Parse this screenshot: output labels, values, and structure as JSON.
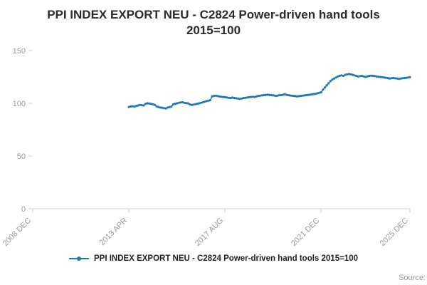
{
  "title": {
    "line1": "PPI INDEX EXPORT NEU - C2824 Power-driven hand tools",
    "line2": "2015=100"
  },
  "legend": {
    "label": "PPI INDEX EXPORT NEU - C2824 Power-driven hand tools 2015=100"
  },
  "source": "Source:",
  "colors": {
    "line": "#1f77b4",
    "axis": "#cccccc",
    "tick_label": "#999999",
    "title": "#2b2b2b"
  },
  "chart_data": {
    "type": "line",
    "title": "PPI INDEX EXPORT NEU - C2824 Power-driven hand tools 2015=100",
    "xlabel": "",
    "ylabel": "",
    "ylim": [
      0,
      150
    ],
    "yticks": [
      0,
      50,
      100,
      150
    ],
    "grid": false,
    "legend_position": "bottom",
    "xticks": [
      "2008 DEC",
      "2013 APR",
      "2017 AUG",
      "2021 DEC",
      "2025 DEC"
    ],
    "xtick_month_index": [
      0,
      52,
      104,
      156,
      204
    ],
    "x_range_months": 204,
    "series": [
      {
        "name": "PPI INDEX EXPORT NEU - C2824 Power-driven hand tools 2015=100",
        "start_label": "2013 APR",
        "start_month_index": 52,
        "frequency": "monthly",
        "values": [
          96.5,
          97.0,
          97.2,
          96.8,
          97.5,
          98.0,
          98.5,
          98.2,
          98.0,
          99.5,
          100.0,
          99.8,
          99.5,
          99.0,
          98.5,
          97.0,
          96.5,
          96.0,
          95.8,
          95.5,
          95.2,
          96.0,
          96.5,
          97.0,
          99.0,
          99.5,
          100.0,
          100.5,
          100.8,
          101.0,
          100.5,
          100.2,
          100.0,
          99.0,
          98.5,
          98.8,
          99.2,
          99.5,
          100.0,
          100.5,
          101.0,
          101.5,
          102.0,
          102.5,
          103.0,
          106.5,
          107.0,
          107.2,
          106.8,
          106.5,
          106.2,
          106.0,
          105.8,
          105.5,
          105.2,
          105.0,
          105.5,
          105.0,
          104.8,
          104.5,
          104.2,
          104.5,
          105.0,
          105.2,
          105.5,
          105.8,
          106.0,
          106.2,
          106.0,
          106.5,
          107.0,
          107.2,
          107.5,
          107.8,
          108.0,
          108.2,
          108.0,
          107.8,
          107.5,
          107.2,
          107.0,
          107.5,
          107.8,
          108.0,
          108.5,
          108.2,
          107.8,
          107.5,
          107.2,
          107.0,
          106.8,
          106.5,
          106.8,
          107.0,
          107.2,
          107.5,
          107.8,
          108.0,
          108.2,
          108.5,
          108.8,
          109.0,
          109.5,
          110.0,
          110.5,
          113.0,
          115.0,
          117.0,
          119.0,
          121.0,
          122.5,
          123.5,
          124.5,
          125.5,
          126.0,
          126.5,
          126.0,
          127.0,
          127.5,
          127.8,
          127.5,
          127.0,
          126.5,
          126.0,
          125.5,
          125.8,
          126.0,
          125.5,
          125.0,
          125.5,
          126.0,
          126.2,
          126.0,
          125.8,
          125.5,
          125.2,
          125.0,
          124.8,
          124.5,
          124.2,
          124.0,
          123.5,
          123.8,
          124.0,
          123.8,
          123.5,
          123.2,
          123.5,
          123.8,
          124.0,
          124.2,
          124.5,
          124.8
        ]
      }
    ]
  }
}
